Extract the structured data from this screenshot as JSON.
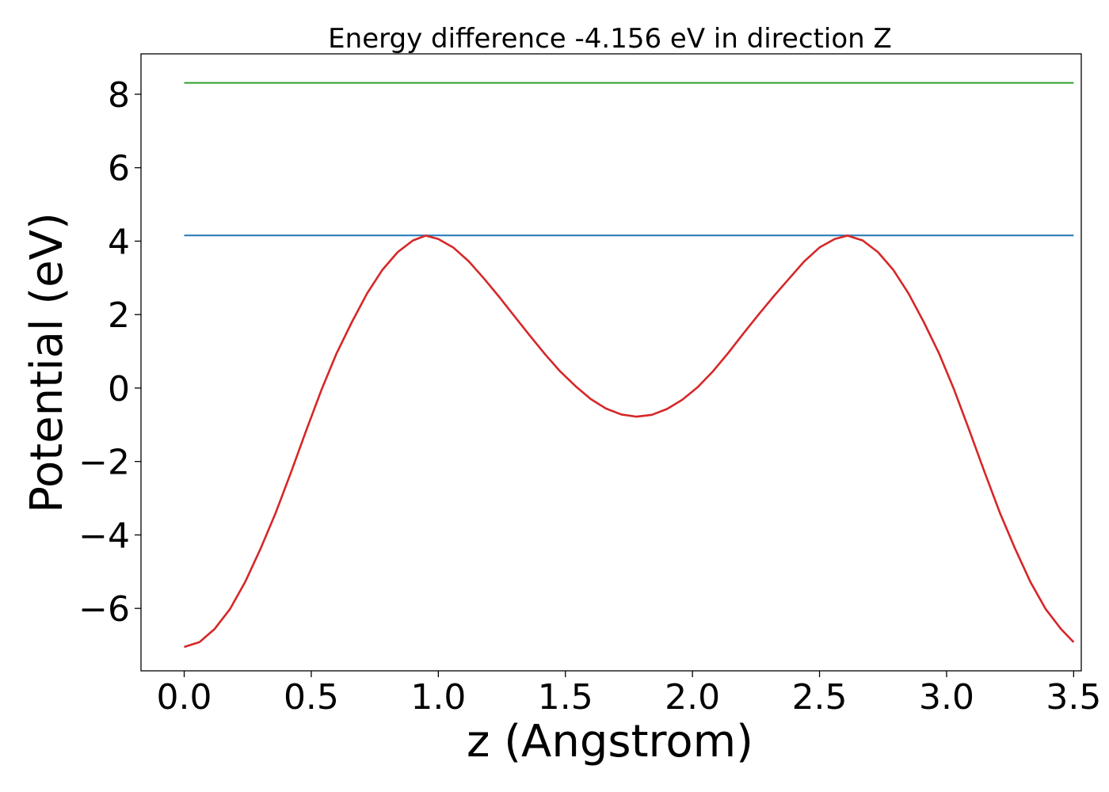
{
  "chart_data": {
    "type": "line",
    "title": "Energy difference -4.156 eV in direction Z",
    "xlabel": "z (Angstrom)",
    "ylabel": "Potential (eV)",
    "xlim": [
      -0.17,
      3.53
    ],
    "ylim": [
      -7.7,
      9.1
    ],
    "xticks": [
      0.0,
      0.5,
      1.0,
      1.5,
      2.0,
      2.5,
      3.0,
      3.5
    ],
    "xtick_labels": [
      "0.0",
      "0.5",
      "1.0",
      "1.5",
      "2.0",
      "2.5",
      "3.0",
      "3.5"
    ],
    "yticks": [
      -6,
      -4,
      -2,
      0,
      2,
      4,
      6,
      8
    ],
    "ytick_labels": [
      "−6",
      "−4",
      "−2",
      "0",
      "2",
      "4",
      "6",
      "8"
    ],
    "grid": false,
    "series": [
      {
        "name": "potential",
        "color": "#d62728",
        "x": [
          0.0,
          0.06,
          0.12,
          0.18,
          0.24,
          0.3,
          0.36,
          0.42,
          0.48,
          0.54,
          0.6,
          0.66,
          0.72,
          0.78,
          0.84,
          0.9,
          0.95,
          1.0,
          1.06,
          1.12,
          1.18,
          1.24,
          1.3,
          1.36,
          1.42,
          1.48,
          1.54,
          1.6,
          1.66,
          1.72,
          1.78,
          1.84,
          1.9,
          1.96,
          2.02,
          2.08,
          2.14,
          2.2,
          2.26,
          2.32,
          2.38,
          2.44,
          2.5,
          2.56,
          2.61,
          2.67,
          2.73,
          2.79,
          2.85,
          2.91,
          2.97,
          3.03,
          3.09,
          3.15,
          3.21,
          3.27,
          3.33,
          3.39,
          3.45,
          3.5
        ],
        "y": [
          -7.05,
          -6.92,
          -6.56,
          -6.02,
          -5.28,
          -4.38,
          -3.4,
          -2.3,
          -1.16,
          -0.05,
          0.95,
          1.8,
          2.58,
          3.22,
          3.7,
          4.02,
          4.15,
          4.06,
          3.82,
          3.45,
          2.98,
          2.48,
          1.95,
          1.43,
          0.92,
          0.45,
          0.05,
          -0.3,
          -0.56,
          -0.72,
          -0.78,
          -0.73,
          -0.57,
          -0.32,
          0.02,
          0.45,
          0.95,
          1.48,
          2.0,
          2.5,
          2.98,
          3.45,
          3.83,
          4.06,
          4.15,
          4.02,
          3.7,
          3.22,
          2.58,
          1.8,
          0.95,
          -0.05,
          -1.16,
          -2.3,
          -3.4,
          -4.38,
          -5.28,
          -6.02,
          -6.56,
          -6.92
        ]
      },
      {
        "name": "barrier-max",
        "color": "#1f77b4",
        "x": [
          0.0,
          3.5
        ],
        "y": [
          4.156,
          4.156
        ]
      },
      {
        "name": "reference-level",
        "color": "#2ca02c",
        "x": [
          0.0,
          3.5
        ],
        "y": [
          8.31,
          8.31
        ]
      }
    ]
  }
}
